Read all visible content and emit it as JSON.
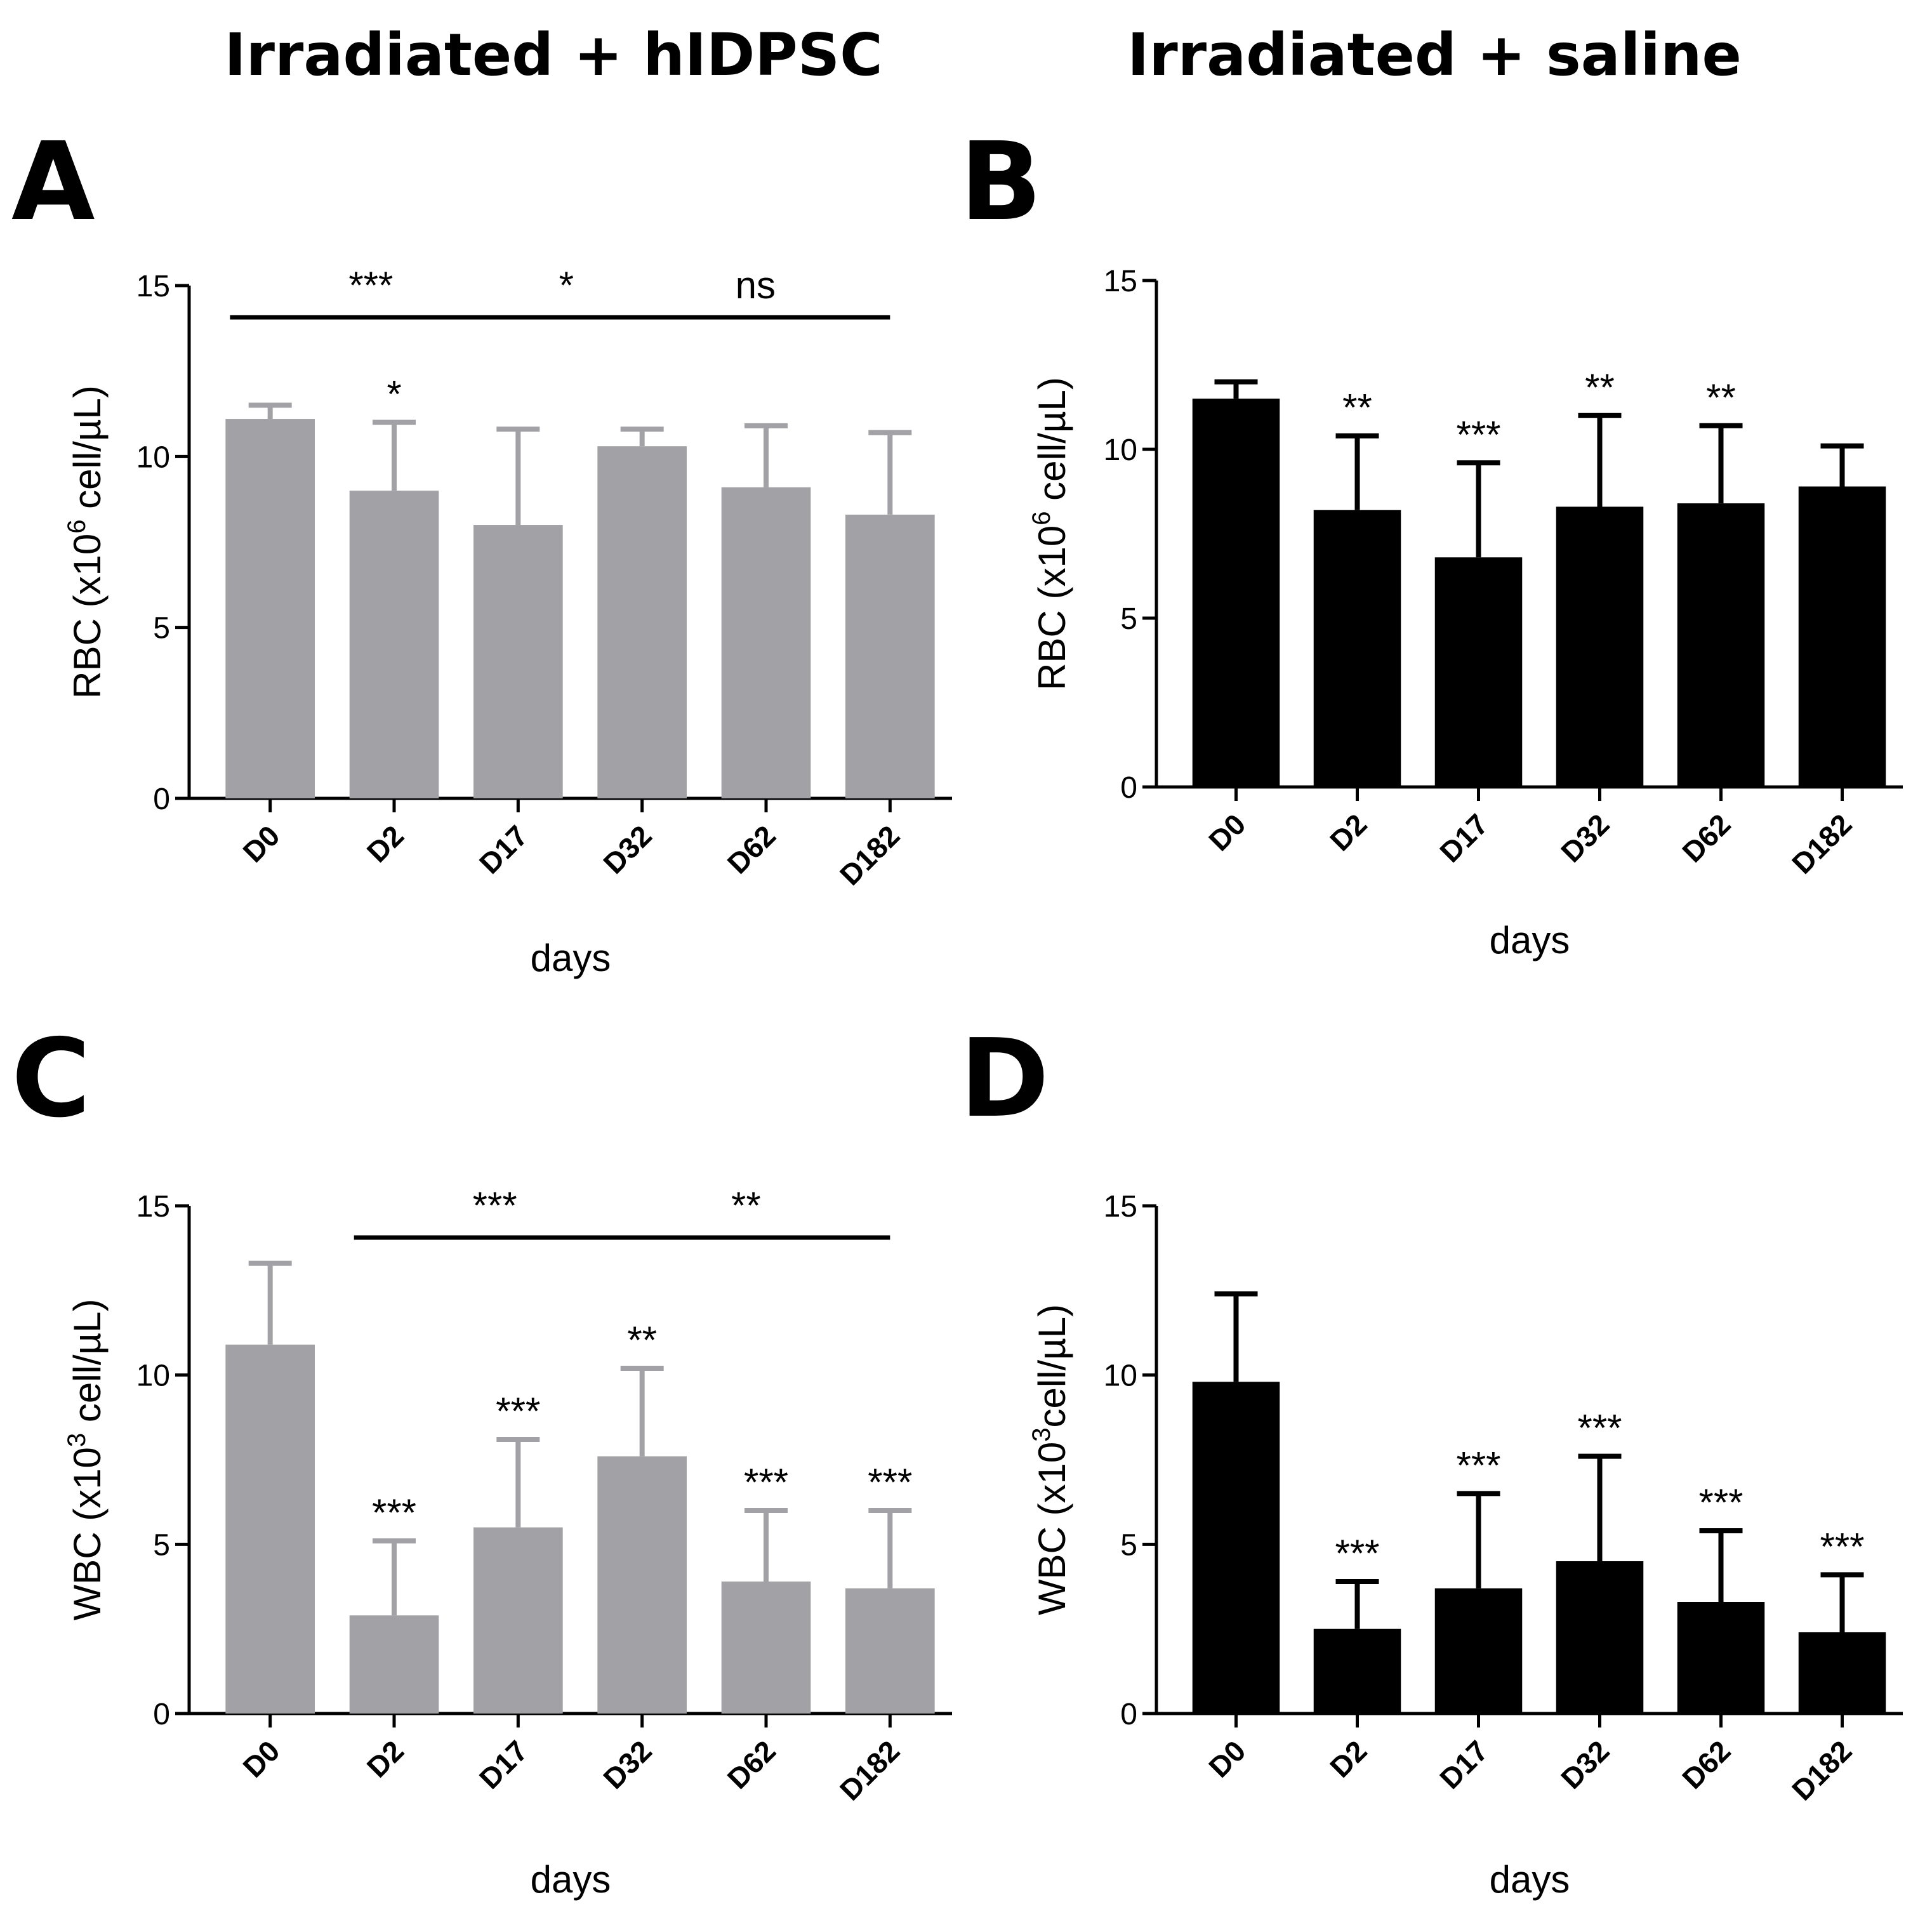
{
  "column_titles": [
    "Irradiated + hIDPSC",
    "Irradiated + saline"
  ],
  "colors": {
    "grey_bar": "#a2a2a6",
    "black_bar": "#000000",
    "axis": "#000000"
  },
  "chart_data": [
    {
      "panel": "A",
      "type": "bar",
      "color": "#a2a2a6",
      "title": "Irradiated + hIDPSC",
      "xlabel": "days",
      "ylabel": {
        "prefix": "RBC (x10",
        "sup": "6",
        "suffix": " cell/µL)"
      },
      "ylim": [
        0,
        15
      ],
      "yticks": [
        0,
        5,
        10,
        15
      ],
      "categories": [
        "D0",
        "D2",
        "D17",
        "D32",
        "D62",
        "D182"
      ],
      "values": [
        11.1,
        9.0,
        8.0,
        10.3,
        9.1,
        8.3
      ],
      "errors": [
        0.4,
        2.0,
        2.8,
        0.5,
        1.8,
        2.4
      ],
      "bar_annotations": [
        "",
        "*",
        "",
        "",
        "",
        ""
      ],
      "brackets": [
        {
          "from": 0,
          "to": 2,
          "label": "***"
        },
        {
          "from": 2,
          "to": 3,
          "label": "*"
        },
        {
          "from": 3,
          "to": 5,
          "label": "ns"
        }
      ]
    },
    {
      "panel": "B",
      "type": "bar",
      "color": "#000000",
      "title": "Irradiated + saline",
      "xlabel": "days",
      "ylabel": {
        "prefix": "RBC (x10",
        "sup": "6",
        "suffix": " cell/µL)"
      },
      "ylim": [
        0,
        15
      ],
      "yticks": [
        0,
        5,
        10,
        15
      ],
      "categories": [
        "D0",
        "D2",
        "D17",
        "D32",
        "D62",
        "D182"
      ],
      "values": [
        11.5,
        8.2,
        6.8,
        8.3,
        8.4,
        8.9
      ],
      "errors": [
        0.5,
        2.2,
        2.8,
        2.7,
        2.3,
        1.2
      ],
      "bar_annotations": [
        "",
        "**",
        "***",
        "**",
        "**",
        ""
      ],
      "brackets": []
    },
    {
      "panel": "C",
      "type": "bar",
      "color": "#a2a2a6",
      "title": "Irradiated + hIDPSC",
      "xlabel": "days",
      "ylabel": {
        "prefix": "WBC (x10",
        "sup": "3",
        "suffix": " cell/µL)"
      },
      "ylim": [
        0,
        15
      ],
      "yticks": [
        0,
        5,
        10,
        15
      ],
      "categories": [
        "D0",
        "D2",
        "D17",
        "D32",
        "D62",
        "D182"
      ],
      "values": [
        10.9,
        2.9,
        5.5,
        7.6,
        3.9,
        3.7
      ],
      "errors": [
        2.4,
        2.2,
        2.6,
        2.6,
        2.1,
        2.3
      ],
      "bar_annotations": [
        "",
        "***",
        "***",
        "**",
        "***",
        "***"
      ],
      "brackets": [
        {
          "from": 1,
          "to": 3,
          "label": "***"
        },
        {
          "from": 3,
          "to": 5,
          "label": "**"
        }
      ]
    },
    {
      "panel": "D",
      "type": "bar",
      "color": "#000000",
      "title": "Irradiated + saline",
      "xlabel": "days",
      "ylabel": {
        "prefix": "WBC (x10",
        "sup": "3",
        "suffix": "cell/µL)"
      },
      "ylim": [
        0,
        15
      ],
      "yticks": [
        0,
        5,
        10,
        15
      ],
      "categories": [
        "D0",
        "D2",
        "D17",
        "D32",
        "D62",
        "D182"
      ],
      "values": [
        9.8,
        2.5,
        3.7,
        4.5,
        3.3,
        2.4
      ],
      "errors": [
        2.6,
        1.4,
        2.8,
        3.1,
        2.1,
        1.7
      ],
      "bar_annotations": [
        "",
        "***",
        "***",
        "***",
        "***",
        "***"
      ],
      "brackets": []
    }
  ]
}
